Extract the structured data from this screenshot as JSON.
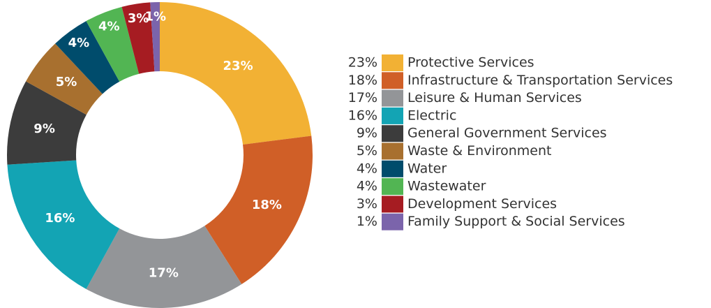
{
  "chart_data": {
    "type": "pie",
    "categories": [
      "Protective Services",
      "Infrastructure & Transportation Services",
      "Leisure & Human Services",
      "Electric",
      "General Government Services",
      "Waste & Environment",
      "Water",
      "Wastewater",
      "Development Services",
      "Family Support & Social Services"
    ],
    "values": [
      23,
      18,
      17,
      16,
      9,
      5,
      4,
      4,
      3,
      1
    ],
    "value_labels": [
      "23%",
      "18%",
      "17%",
      "16%",
      "9%",
      "5%",
      "4%",
      "4%",
      "3%",
      "1%"
    ],
    "colors": [
      "#f2b134",
      "#d05f27",
      "#939598",
      "#13a4b4",
      "#3c3c3c",
      "#a8702f",
      "#004c6c",
      "#52b553",
      "#a61c22",
      "#7b64ab"
    ]
  }
}
